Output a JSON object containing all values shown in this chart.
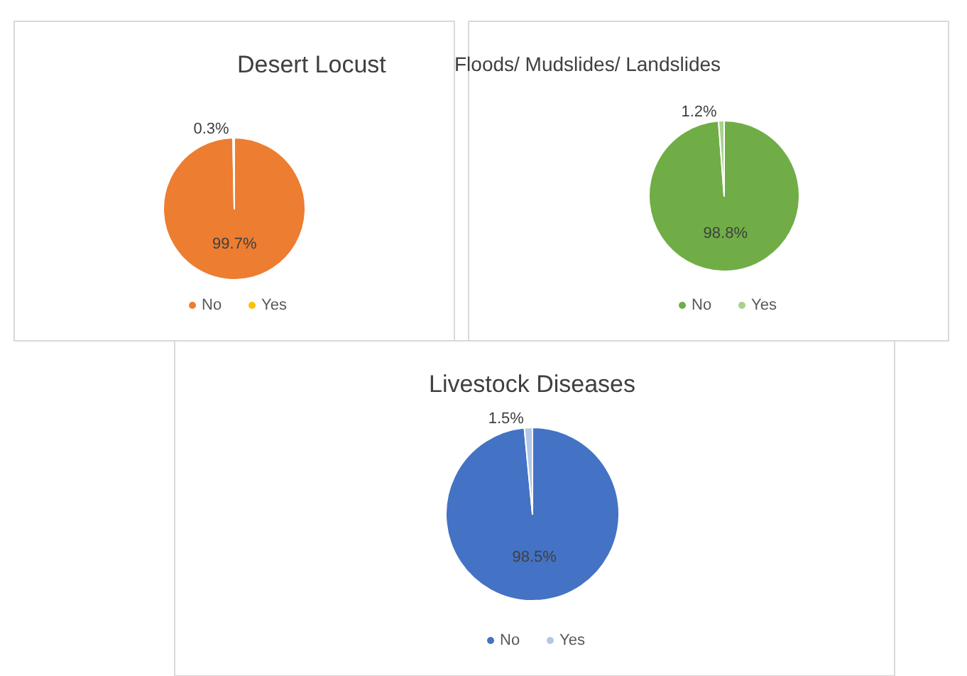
{
  "chart_data": [
    {
      "type": "pie",
      "title": "Desert Locust",
      "categories": [
        "No",
        "Yes"
      ],
      "values": [
        99.7,
        0.3
      ],
      "colors": [
        "#ed7d31",
        "#ffc000"
      ],
      "value_labels": [
        "99.7%",
        "0.3%"
      ],
      "legend": "bottom"
    },
    {
      "type": "pie",
      "title": "Floods/ Mudslides/ Landslides",
      "categories": [
        "No",
        "Yes"
      ],
      "values": [
        98.8,
        1.2
      ],
      "colors": [
        "#70ad47",
        "#a9d18e"
      ],
      "value_labels": [
        "98.8%",
        "1.2%"
      ],
      "legend": "bottom"
    },
    {
      "type": "pie",
      "title": "Livestock Diseases",
      "categories": [
        "No",
        "Yes"
      ],
      "values": [
        98.5,
        1.5
      ],
      "colors": [
        "#4472c4",
        "#b4c7e7"
      ],
      "value_labels": [
        "98.5%",
        "1.5%"
      ],
      "legend": "bottom"
    }
  ]
}
